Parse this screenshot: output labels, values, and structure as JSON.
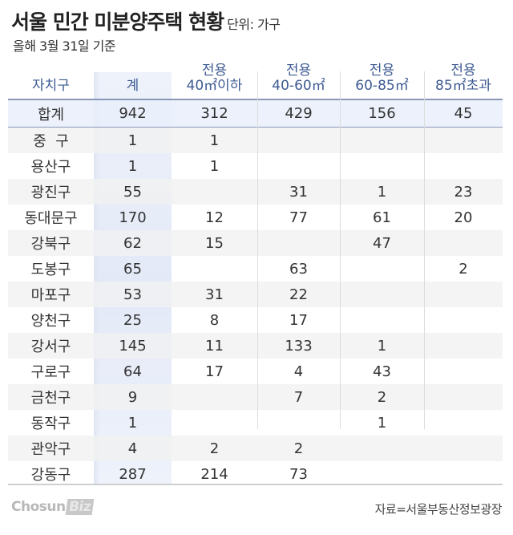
{
  "header": {
    "title": "서울 민간 미분양주택 현황",
    "unit": "단위: 가구",
    "subtitle": "올해 3월 31일 기준"
  },
  "table": {
    "columns": [
      {
        "line1": "",
        "line2": "자치구"
      },
      {
        "line1": "",
        "line2": "계"
      },
      {
        "line1": "전용",
        "line2": "40㎡이하"
      },
      {
        "line1": "전용",
        "line2": "40-60㎡"
      },
      {
        "line1": "전용",
        "line2": "60-85㎡"
      },
      {
        "line1": "전용",
        "line2": "85㎡초과"
      }
    ],
    "total": {
      "district": "합계",
      "values": [
        "942",
        "312",
        "429",
        "156",
        "45"
      ]
    },
    "rows": [
      {
        "district": "중  구",
        "values": [
          "1",
          "1",
          "",
          "",
          ""
        ]
      },
      {
        "district": "용산구",
        "values": [
          "1",
          "1",
          "",
          "",
          ""
        ]
      },
      {
        "district": "광진구",
        "values": [
          "55",
          "",
          "31",
          "1",
          "23"
        ]
      },
      {
        "district": "동대문구",
        "values": [
          "170",
          "12",
          "77",
          "61",
          "20"
        ]
      },
      {
        "district": "강북구",
        "values": [
          "62",
          "15",
          "",
          "47",
          ""
        ]
      },
      {
        "district": "도봉구",
        "values": [
          "65",
          "",
          "63",
          "",
          "2"
        ]
      },
      {
        "district": "마포구",
        "values": [
          "53",
          "31",
          "22",
          "",
          ""
        ]
      },
      {
        "district": "양천구",
        "values": [
          "25",
          "8",
          "17",
          "",
          ""
        ]
      },
      {
        "district": "강서구",
        "values": [
          "145",
          "11",
          "133",
          "1",
          ""
        ]
      },
      {
        "district": "구로구",
        "values": [
          "64",
          "17",
          "4",
          "43",
          ""
        ]
      },
      {
        "district": "금천구",
        "values": [
          "9",
          "",
          "7",
          "2",
          ""
        ]
      },
      {
        "district": "동작구",
        "values": [
          "1",
          "",
          "",
          "1",
          ""
        ]
      },
      {
        "district": "관악구",
        "values": [
          "4",
          "2",
          "2",
          "",
          ""
        ]
      },
      {
        "district": "강동구",
        "values": [
          "287",
          "214",
          "73",
          "",
          ""
        ]
      }
    ]
  },
  "footer": {
    "logo_main": "Chosun",
    "logo_biz": "Biz",
    "source": "자료=서울부동산정보광장"
  },
  "colors": {
    "header_text": "#3d5a92",
    "highlight_column": "#e3e9f7",
    "zebra": "#f1f1f1"
  }
}
